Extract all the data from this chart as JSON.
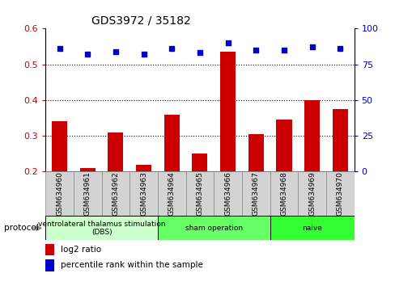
{
  "title": "GDS3972 / 35182",
  "samples": [
    "GSM634960",
    "GSM634961",
    "GSM634962",
    "GSM634963",
    "GSM634964",
    "GSM634965",
    "GSM634966",
    "GSM634967",
    "GSM634968",
    "GSM634969",
    "GSM634970"
  ],
  "log2_ratio": [
    0.34,
    0.21,
    0.31,
    0.22,
    0.36,
    0.25,
    0.535,
    0.305,
    0.345,
    0.4,
    0.375
  ],
  "percentile_rank": [
    86,
    82,
    84,
    82,
    86,
    83,
    90,
    85,
    85,
    87,
    86
  ],
  "ylim_left": [
    0.2,
    0.6
  ],
  "ylim_right": [
    0,
    100
  ],
  "yticks_left": [
    0.2,
    0.3,
    0.4,
    0.5,
    0.6
  ],
  "yticks_right": [
    0,
    25,
    50,
    75,
    100
  ],
  "bar_color": "#cc0000",
  "dot_color": "#0000cc",
  "groups": [
    {
      "label": "ventrolateral thalamus stimulation\n(DBS)",
      "indices": [
        0,
        1,
        2,
        3
      ],
      "color": "#ccffcc"
    },
    {
      "label": "sham operation",
      "indices": [
        4,
        5,
        6,
        7
      ],
      "color": "#66ff66"
    },
    {
      "label": "naive",
      "indices": [
        8,
        9,
        10
      ],
      "color": "#33ff33"
    }
  ],
  "protocol_label": "protocol",
  "legend_bar_label": "log2 ratio",
  "legend_dot_label": "percentile rank within the sample",
  "bar_color_legend": "#cc0000",
  "dot_color_legend": "#0000cc",
  "tick_color_left": "#cc0000",
  "tick_color_right": "#0000cc",
  "sample_box_color": "#d3d3d3",
  "sample_box_edge": "#888888"
}
